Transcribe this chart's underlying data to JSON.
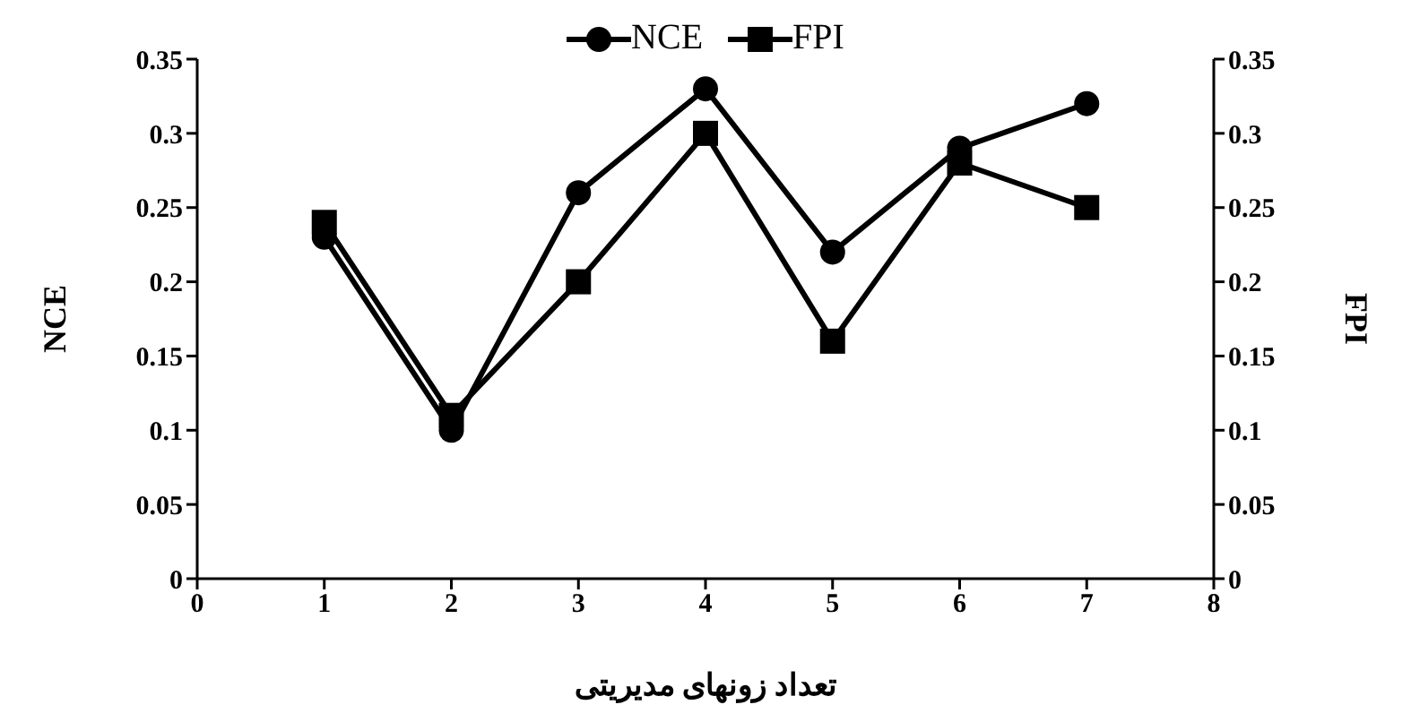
{
  "chart_data": {
    "type": "line",
    "xlabel": "تعداد زونهای مدیریتی",
    "ylabel": "NCE",
    "y2label": "FPI",
    "x": [
      1,
      2,
      3,
      4,
      5,
      6,
      7
    ],
    "series": [
      {
        "name": "NCE",
        "color": "#000000",
        "marker": "circle",
        "values": [
          0.23,
          0.1,
          0.26,
          0.33,
          0.22,
          0.29,
          0.32
        ]
      },
      {
        "name": "FPI",
        "color": "#000000",
        "marker": "square",
        "axis": "y2",
        "values": [
          0.24,
          0.11,
          0.2,
          0.3,
          0.16,
          0.28,
          0.25
        ]
      }
    ],
    "xlim": [
      0,
      8
    ],
    "xticks": [
      0,
      1,
      2,
      3,
      4,
      5,
      6,
      7,
      8
    ],
    "ylim": [
      0,
      0.35
    ],
    "yticks": [
      0,
      0.05,
      0.1,
      0.15,
      0.2,
      0.25,
      0.3,
      0.35
    ],
    "y2lim": [
      0,
      0.35
    ],
    "y2ticks": [
      0,
      0.05,
      0.1,
      0.15,
      0.2,
      0.25,
      0.3,
      0.35
    ],
    "legend": "top",
    "grid": false,
    "line_style": "solid"
  }
}
